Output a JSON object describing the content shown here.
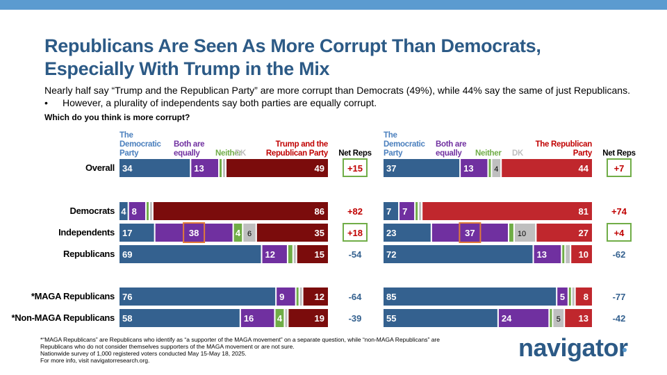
{
  "header": {
    "title_line1": "Republicans Are Seen As More Corrupt Than Democrats,",
    "title_line2": "Especially With Trump in the Mix",
    "subtitle": "Nearly half say “Trump and the Republican Party” are more corrupt than Democrats (49%), while 44% say the same of just Republicans.",
    "bullet_symbol": "•",
    "bullet": "However, a plurality of independents say both parties are equally corrupt.",
    "question": "Which do you think is more corrupt?"
  },
  "colors": {
    "dem": "#34618f",
    "both": "#7030a0",
    "neither": "#70ad47",
    "dk": "#bfbfbf",
    "trump_rep": "#7b0c0c",
    "rep": "#c0272d",
    "net_pos": "#c00000",
    "net_neg": "#34618f",
    "box_green": "#70ad47",
    "box_orange": "#e07b39",
    "header_dem": "#4a7fbd",
    "header_both": "#7030a0",
    "header_neither": "#70ad47",
    "header_dk": "#bfbfbf",
    "header_trump": "#c00000"
  },
  "chart_data": [
    {
      "type": "bar",
      "stacked": true,
      "orientation": "horizontal",
      "title": "Trump and the Republican Party vs. The Democratic Party",
      "legend": [
        {
          "key": "dem",
          "label_lines": [
            "The",
            "Democratic",
            "Party"
          ]
        },
        {
          "key": "both",
          "label_lines": [
            "Both are",
            "equally"
          ]
        },
        {
          "key": "neither",
          "label_lines": [
            "Neither"
          ]
        },
        {
          "key": "dk",
          "label_lines": [
            "DK"
          ]
        },
        {
          "key": "rep",
          "label_lines": [
            "Trump and the",
            "Republican Party"
          ]
        }
      ],
      "net_header": "Net Reps",
      "categories": [
        "Overall",
        "Democrats",
        "Independents",
        "Republicans",
        "*MAGA Republicans",
        "*Non-MAGA Republicans"
      ],
      "series": [
        {
          "name": "The Democratic Party",
          "key": "dem",
          "values": [
            34,
            4,
            17,
            69,
            76,
            58
          ],
          "labels": [
            "34",
            "4",
            "17",
            "69",
            "76",
            "58"
          ]
        },
        {
          "name": "Both are equally",
          "key": "both",
          "values": [
            13,
            8,
            38,
            12,
            9,
            16
          ],
          "labels": [
            "13",
            "8",
            "38",
            "12",
            "9",
            "16"
          ]
        },
        {
          "name": "Neither",
          "key": "neither",
          "values": [
            1,
            1,
            4,
            2,
            1,
            4
          ],
          "labels": [
            "",
            "",
            "4",
            "",
            "",
            "4"
          ]
        },
        {
          "name": "DK",
          "key": "dk",
          "values": [
            1,
            1,
            6,
            1,
            1,
            1
          ],
          "labels": [
            "",
            "",
            "6",
            "",
            "",
            ""
          ]
        },
        {
          "name": "Trump and the Republican Party",
          "key": "rep",
          "values": [
            49,
            86,
            35,
            15,
            12,
            19
          ],
          "labels": [
            "49",
            "86",
            "35",
            "15",
            "12",
            "19"
          ]
        }
      ],
      "net": [
        "+15",
        "+82",
        "+18",
        "-54",
        "-64",
        "-39"
      ],
      "net_boxed": [
        true,
        false,
        true,
        false,
        false,
        false
      ],
      "highlight": [
        {
          "category": "Independents",
          "series": "both"
        }
      ]
    },
    {
      "type": "bar",
      "stacked": true,
      "orientation": "horizontal",
      "title": "The Republican Party vs. The Democratic Party",
      "legend": [
        {
          "key": "dem",
          "label_lines": [
            "The",
            "Democratic",
            "Party"
          ]
        },
        {
          "key": "both",
          "label_lines": [
            "Both are",
            "equally"
          ]
        },
        {
          "key": "neither",
          "label_lines": [
            "Neither"
          ]
        },
        {
          "key": "dk",
          "label_lines": [
            "DK"
          ]
        },
        {
          "key": "rep",
          "label_lines": [
            "The Republican",
            "Party"
          ]
        }
      ],
      "net_header": "Net Reps",
      "categories": [
        "Overall",
        "Democrats",
        "Independents",
        "Republicans",
        "*MAGA Republicans",
        "*Non-MAGA Republicans"
      ],
      "series": [
        {
          "name": "The Democratic Party",
          "key": "dem",
          "values": [
            37,
            7,
            23,
            72,
            85,
            55
          ],
          "labels": [
            "37",
            "7",
            "23",
            "72",
            "85",
            "55"
          ]
        },
        {
          "name": "Both are equally",
          "key": "both",
          "values": [
            13,
            7,
            37,
            13,
            5,
            24
          ],
          "labels": [
            "13",
            "7",
            "37",
            "13",
            "5",
            "24"
          ]
        },
        {
          "name": "Neither",
          "key": "neither",
          "values": [
            1,
            1,
            2,
            1,
            1,
            1
          ],
          "labels": [
            "",
            "",
            "",
            "",
            "",
            ""
          ]
        },
        {
          "name": "DK",
          "key": "dk",
          "values": [
            4,
            1,
            10,
            2,
            1,
            5
          ],
          "labels": [
            "4",
            "",
            "10",
            "",
            "",
            "5"
          ]
        },
        {
          "name": "The Republican Party",
          "key": "rep",
          "values": [
            44,
            81,
            27,
            10,
            8,
            13
          ],
          "labels": [
            "44",
            "81",
            "27",
            "10",
            "8",
            "13"
          ]
        }
      ],
      "net": [
        "+7",
        "+74",
        "+4",
        "-62",
        "-77",
        "-42"
      ],
      "net_boxed": [
        true,
        false,
        true,
        false,
        false,
        false
      ],
      "highlight": [
        {
          "category": "Independents",
          "series": "both"
        }
      ]
    }
  ],
  "footnote": {
    "line1": "*“MAGA Republicans” are Republicans who identify as “a supporter of the MAGA movement” on a separate question, while “non-MAGA Republicans” are",
    "line2": "Republicans who do not consider themselves supporters of the MAGA movement or are not sure.",
    "line3": "Nationwide survey of 1,000 registered voters conducted May 15-May 18, 2025.",
    "line4": "For more info, visit navigatorresearch.org."
  },
  "logo": {
    "text": "navigator"
  }
}
